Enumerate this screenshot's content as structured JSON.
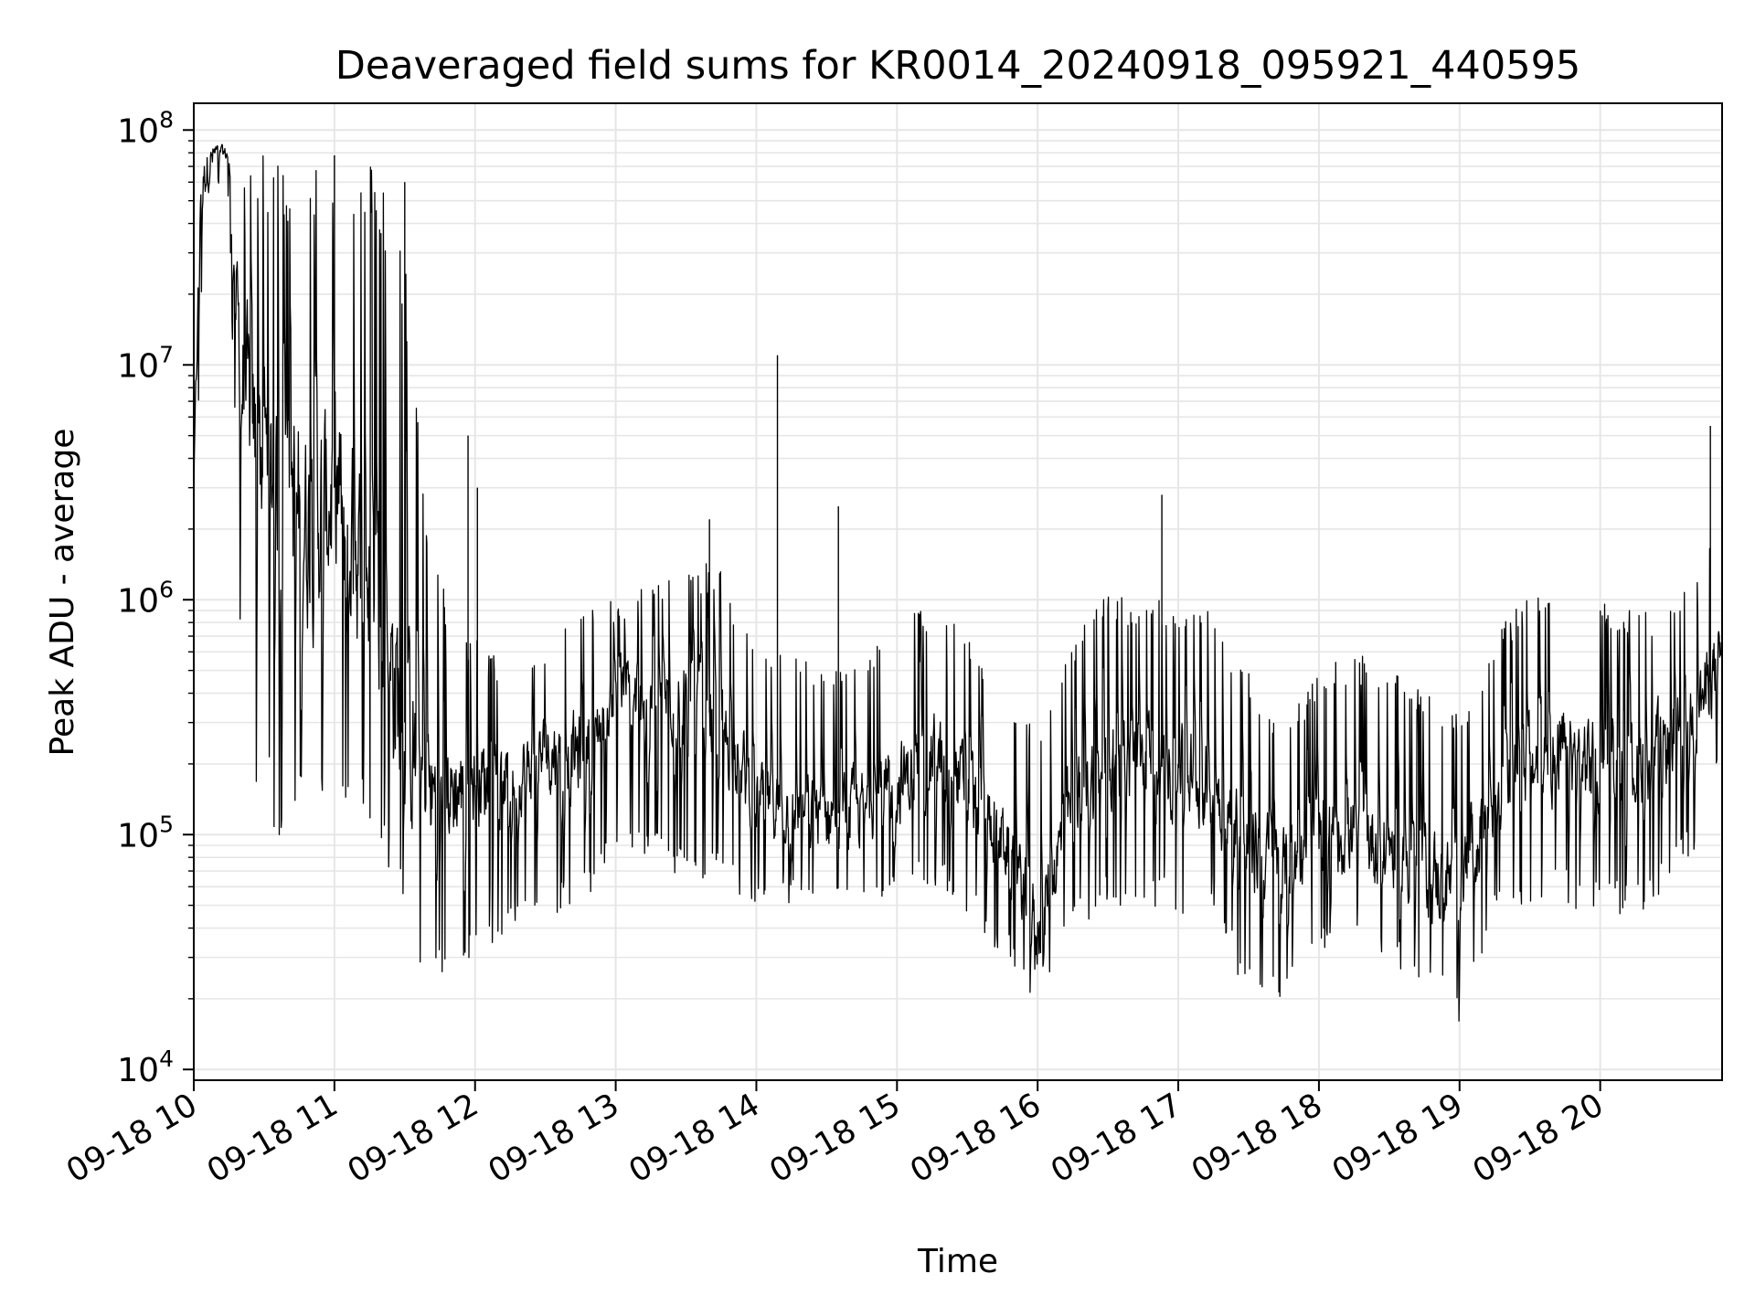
{
  "chart_data": {
    "type": "line",
    "title": "Deaveraged field sums for KR0014_20240918_095921_440595",
    "xlabel": "Time",
    "ylabel": "Peak ADU - average",
    "yscale": "log",
    "ylim": [
      9000,
      130000000
    ],
    "xlim": [
      "2024-09-18 10:00",
      "2024-09-18 20:52"
    ],
    "grid": true,
    "legend": "none",
    "line_color": "#000000",
    "grid_color": "#e6e6e6",
    "x_ticks": [
      "09-18 10",
      "09-18 11",
      "09-18 12",
      "09-18 13",
      "09-18 14",
      "09-18 15",
      "09-18 16",
      "09-18 17",
      "09-18 18",
      "09-18 19",
      "09-18 20"
    ],
    "y_ticks": [
      {
        "base": "10",
        "exp": "4",
        "value": 10000
      },
      {
        "base": "10",
        "exp": "5",
        "value": 100000
      },
      {
        "base": "10",
        "exp": "6",
        "value": 1000000
      },
      {
        "base": "10",
        "exp": "7",
        "value": 10000000
      },
      {
        "base": "10",
        "exp": "8",
        "value": 100000000
      }
    ],
    "series": [
      {
        "x": [
          "2024-09-18 10:00",
          "2024-09-18 10:03",
          "2024-09-18 10:06",
          "2024-09-18 10:10",
          "2024-09-18 10:15",
          "2024-09-18 10:20",
          "2024-09-18 10:25",
          "2024-09-18 10:30",
          "2024-09-18 10:40",
          "2024-09-18 10:50",
          "2024-09-18 11:00",
          "2024-09-18 11:10",
          "2024-09-18 11:20",
          "2024-09-18 11:30",
          "2024-09-18 11:40",
          "2024-09-18 11:50",
          "2024-09-18 12:00",
          "2024-09-18 12:15",
          "2024-09-18 12:30",
          "2024-09-18 12:45",
          "2024-09-18 13:00",
          "2024-09-18 13:15",
          "2024-09-18 13:30",
          "2024-09-18 13:45",
          "2024-09-18 14:00",
          "2024-09-18 14:15",
          "2024-09-18 14:30",
          "2024-09-18 14:45",
          "2024-09-18 15:00",
          "2024-09-18 15:15",
          "2024-09-18 15:30",
          "2024-09-18 15:45",
          "2024-09-18 16:00",
          "2024-09-18 16:15",
          "2024-09-18 16:30",
          "2024-09-18 16:45",
          "2024-09-18 17:00",
          "2024-09-18 17:15",
          "2024-09-18 17:30",
          "2024-09-18 17:45",
          "2024-09-18 18:00",
          "2024-09-18 18:15",
          "2024-09-18 18:30",
          "2024-09-18 18:45",
          "2024-09-18 19:00",
          "2024-09-18 19:15",
          "2024-09-18 19:30",
          "2024-09-18 19:45",
          "2024-09-18 20:00",
          "2024-09-18 20:15",
          "2024-09-18 20:30",
          "2024-09-18 20:45",
          "2024-09-18 20:52"
        ],
        "values": [
          3000000,
          60000000,
          70000000,
          82000000,
          78000000,
          10000000,
          5000000,
          4000000,
          3000000,
          2000000,
          3000000,
          1500000,
          800000,
          300000,
          150000,
          150000,
          170000,
          170000,
          220000,
          220000,
          400000,
          380000,
          400000,
          300000,
          140000,
          130000,
          120000,
          130000,
          160000,
          220000,
          160000,
          100000,
          40000,
          140000,
          200000,
          200000,
          190000,
          160000,
          90000,
          70000,
          100000,
          100000,
          90000,
          70000,
          60000,
          150000,
          200000,
          220000,
          200000,
          200000,
          250000,
          400000,
          600000
        ]
      }
    ],
    "envelope": {
      "x": [
        "2024-09-18 10:00",
        "2024-09-18 10:03",
        "2024-09-18 10:06",
        "2024-09-18 10:10",
        "2024-09-18 10:15",
        "2024-09-18 10:20",
        "2024-09-18 10:25",
        "2024-09-18 10:30",
        "2024-09-18 10:40",
        "2024-09-18 10:50",
        "2024-09-18 11:00",
        "2024-09-18 11:10",
        "2024-09-18 11:20",
        "2024-09-18 11:30",
        "2024-09-18 11:40",
        "2024-09-18 11:50",
        "2024-09-18 12:00",
        "2024-09-18 12:15",
        "2024-09-18 12:30",
        "2024-09-18 12:45",
        "2024-09-18 13:00",
        "2024-09-18 13:15",
        "2024-09-18 13:30",
        "2024-09-18 13:45",
        "2024-09-18 14:00",
        "2024-09-18 14:15",
        "2024-09-18 14:30",
        "2024-09-18 14:45",
        "2024-09-18 15:00",
        "2024-09-18 15:15",
        "2024-09-18 15:30",
        "2024-09-18 15:45",
        "2024-09-18 16:00",
        "2024-09-18 16:15",
        "2024-09-18 16:30",
        "2024-09-18 16:45",
        "2024-09-18 17:00",
        "2024-09-18 17:15",
        "2024-09-18 17:30",
        "2024-09-18 17:45",
        "2024-09-18 18:00",
        "2024-09-18 18:15",
        "2024-09-18 18:30",
        "2024-09-18 18:45",
        "2024-09-18 19:00",
        "2024-09-18 19:15",
        "2024-09-18 19:30",
        "2024-09-18 19:45",
        "2024-09-18 20:00",
        "2024-09-18 20:15",
        "2024-09-18 20:30",
        "2024-09-18 20:45",
        "2024-09-18 20:52"
      ],
      "high": [
        5000000,
        70000000,
        80000000,
        88000000,
        85000000,
        78000000,
        78000000,
        78000000,
        78000000,
        78000000,
        78000000,
        78000000,
        70000000,
        30000000,
        1800000,
        900000,
        700000,
        500000,
        700000,
        900000,
        1000000,
        1200000,
        1500000,
        1400000,
        600000,
        600000,
        500000,
        600000,
        800000,
        1000000,
        700000,
        400000,
        300000,
        700000,
        1100000,
        1000000,
        1000000,
        900000,
        500000,
        300000,
        500000,
        600000,
        500000,
        400000,
        350000,
        700000,
        1100000,
        1200000,
        1000000,
        900000,
        900000,
        1500000,
        2500000
      ],
      "low": [
        600000,
        20000000,
        15000000,
        60000000,
        50000000,
        500000,
        200000,
        100000,
        90000,
        90000,
        90000,
        100000,
        60000,
        35000,
        25000,
        25000,
        30000,
        40000,
        45000,
        50000,
        80000,
        80000,
        60000,
        60000,
        50000,
        50000,
        45000,
        45000,
        50000,
        60000,
        45000,
        30000,
        19000,
        35000,
        50000,
        50000,
        45000,
        40000,
        20000,
        20000,
        28000,
        30000,
        28000,
        22000,
        15000,
        40000,
        50000,
        50000,
        45000,
        45000,
        60000,
        100000,
        200000
      ]
    },
    "spikes": [
      {
        "x": "2024-09-18 11:00",
        "y": 78000000
      },
      {
        "x": "2024-09-18 11:30",
        "y": 60000000
      },
      {
        "x": "2024-09-18 11:57",
        "y": 5000000
      },
      {
        "x": "2024-09-18 12:01",
        "y": 3000000
      },
      {
        "x": "2024-09-18 13:40",
        "y": 2200000
      },
      {
        "x": "2024-09-18 14:09",
        "y": 11000000
      },
      {
        "x": "2024-09-18 14:35",
        "y": 2500000
      },
      {
        "x": "2024-09-18 16:53",
        "y": 2800000
      },
      {
        "x": "2024-09-18 20:47",
        "y": 5500000
      }
    ]
  }
}
